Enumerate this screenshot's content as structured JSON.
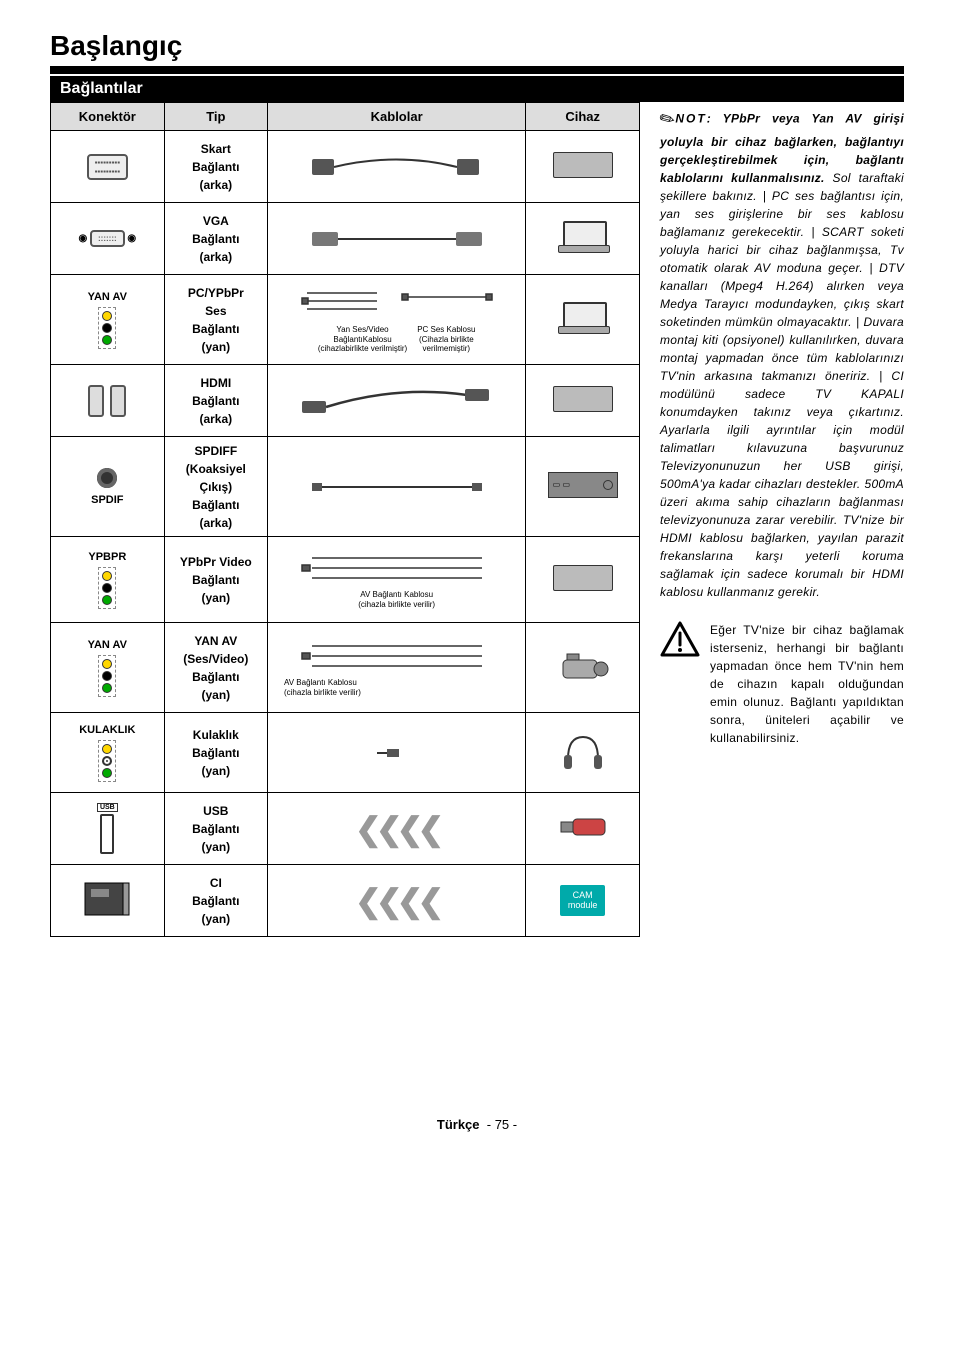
{
  "page": {
    "title": "Başlangıç",
    "subtitle": "Bağlantılar",
    "footer_lang": "Türkçe",
    "footer_page": "- 75 -"
  },
  "table": {
    "headers": {
      "konektor": "Konektör",
      "tip": "Tip",
      "kablolar": "Kablolar",
      "cihaz": "Cihaz"
    },
    "rows": [
      {
        "konektor_label": "",
        "tip": "Skart\nBağlantı\n(arka)",
        "cable_caption": "",
        "device": "dvd"
      },
      {
        "konektor_label": "",
        "tip": "VGA\nBağlantı\n(arka)",
        "cable_caption": "",
        "device": "laptop"
      },
      {
        "konektor_label": "YAN AV",
        "tip": "PC/YPbPr\nSes\nBağlantı\n(yan)",
        "cable_caption_left": "Yan Ses/Video\nBağlantıKablosu\n(cihazlabirlikte verilmiştir)",
        "cable_caption_right": "PC Ses Kablosu\n(Cihazla birlikte\nverilmemiştir)",
        "device": "laptop"
      },
      {
        "konektor_label": "",
        "tip": "HDMI\nBağlantı\n(arka)",
        "cable_caption": "",
        "device": "dvd"
      },
      {
        "konektor_label": "SPDIF",
        "tip": "SPDIFF\n(Koaksiyel\nÇıkış)\nBağlantı\n(arka)",
        "cable_caption": "",
        "device": "amp"
      },
      {
        "konektor_label": "YPBPR",
        "tip": "YPbPr Video\nBağlantı\n(yan)",
        "cable_caption": "AV Bağlantı Kablosu\n(cihazla birlikte verilir)",
        "device": "dvd"
      },
      {
        "konektor_label": "YAN AV",
        "tip": "YAN AV\n(Ses/Video)\nBağlantı\n(yan)",
        "cable_caption": "AV Bağlantı Kablosu\n(cihazla birlikte verilir)",
        "device": "camcorder"
      },
      {
        "konektor_label": "KULAKLIK",
        "tip": "Kulaklık\nBağlantı\n(yan)",
        "cable_caption": "",
        "device": "headphones"
      },
      {
        "konektor_label": "USB",
        "tip": "USB\nBağlantı\n(yan)",
        "cable_caption": "",
        "device": "usbstick"
      },
      {
        "konektor_label": "",
        "tip": "CI\nBağlantı\n(yan)",
        "cable_caption": "",
        "device": "cam",
        "cam_text": "CAM\nmodule"
      }
    ]
  },
  "sidebar": {
    "note_label": "NOT",
    "note_bold": ": YPbPr veya Yan AV girişi yoluyla bir cihaz bağlarken, bağlantıyı gerçekleştirebilmek için, bağlantı kablolarını kullanmalısınız.",
    "note_rest": " Sol taraftaki şekillere bakınız. | PC ses bağlantısı için, yan ses girişlerine bir ses kablosu bağlamanız gerekecektir. | SCART soketi yoluyla harici bir cihaz bağlanmışsa, Tv otomatik olarak AV moduna geçer. | DTV kanalları (Mpeg4 H.264) alırken veya Medya Tarayıcı modundayken, çıkış skart soketinden mümkün olmayacaktır. | Duvara montaj kiti (opsiyonel) kullanılırken, duvara montaj yapmadan önce tüm kablolarınızı TV'nin arkasına takmanızı öneririz. | CI modülünü sadece TV KAPALI konumdayken takınız veya çıkartınız. Ayarlarla ilgili ayrıntılar için modül talimatları kılavuzuna başvurunuz Televizyonunuzun her USB girişi, 500mA'ya kadar cihazları destekler. 500mA üzeri akıma sahip cihazların bağlanması televizyonunuza zarar verebilir. TV'nize bir HDMI kablosu bağlarken, yayılan parazit frekanslarına karşı yeterli koruma sağlamak için sadece korumalı bir HDMI kablosu kullanmanız gerekir."
  },
  "warning": {
    "text": "Eğer TV'nize bir cihaz bağlamak isterseniz, herhangi bir bağlantı yapmadan önce hem TV'nin hem de cihazın kapalı olduğundan emin olunuz. Bağlantı yapıldıktan sonra, üniteleri açabilir ve kullanabilirsiniz."
  }
}
